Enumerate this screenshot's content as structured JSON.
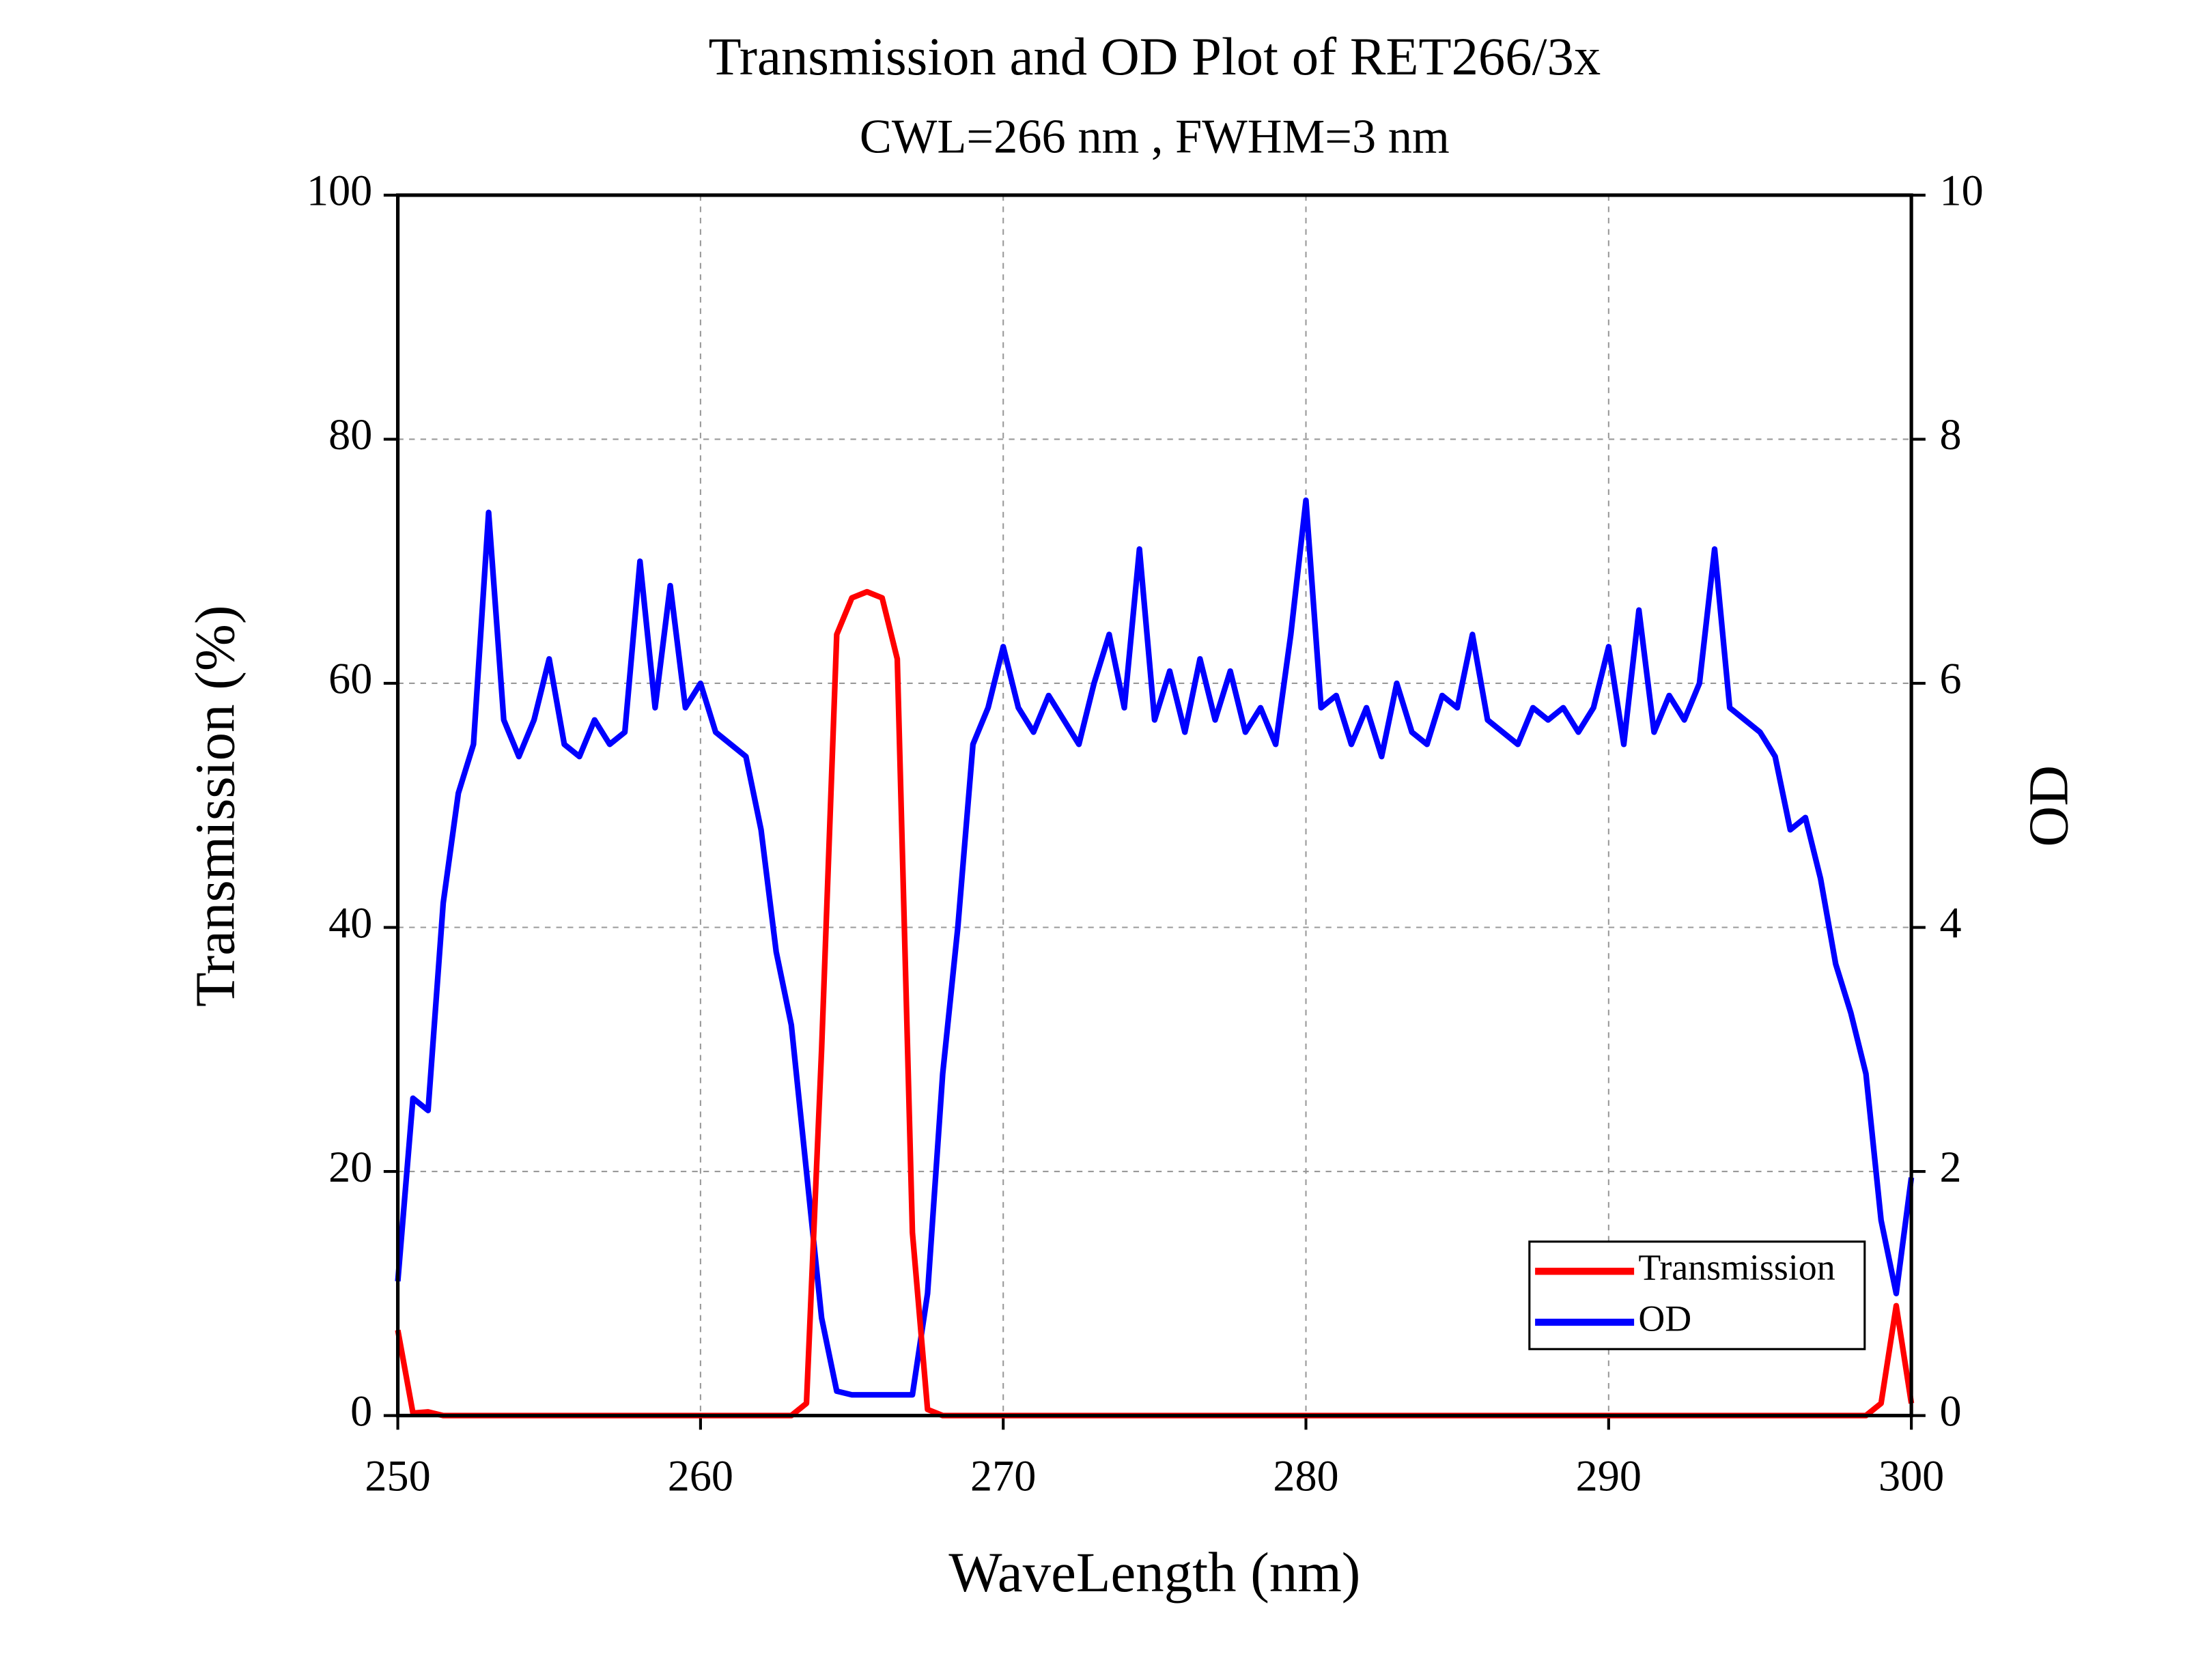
{
  "chart_data": {
    "type": "line",
    "title": "Transmission and OD Plot of RET266/3x",
    "subtitle": "CWL=266 nm , FWHM=3 nm",
    "x_label": "WaveLength (nm)",
    "y_label": "Transmission (%)",
    "y2_label": "OD",
    "x": [
      250,
      250.5,
      251,
      251.5,
      252,
      252.5,
      253,
      253.5,
      254,
      254.5,
      255,
      255.5,
      256,
      256.5,
      257,
      257.5,
      258,
      258.5,
      259,
      259.5,
      260,
      260.5,
      261,
      261.5,
      262,
      262.5,
      263,
      263.5,
      264,
      264.5,
      265,
      265.5,
      266,
      266.5,
      267,
      267.5,
      268,
      268.5,
      269,
      269.5,
      270,
      270.5,
      271,
      271.5,
      272,
      272.5,
      273,
      273.5,
      274,
      274.5,
      275,
      275.5,
      276,
      276.5,
      277,
      277.5,
      278,
      278.5,
      279,
      279.5,
      280,
      280.5,
      281,
      281.5,
      282,
      282.5,
      283,
      283.5,
      284,
      284.5,
      285,
      285.5,
      286,
      286.5,
      287,
      287.5,
      288,
      288.5,
      289,
      289.5,
      290,
      290.5,
      291,
      291.5,
      292,
      292.5,
      293,
      293.5,
      294,
      294.5,
      295,
      295.5,
      296,
      296.5,
      297,
      297.5,
      298,
      298.5,
      299,
      299.5,
      300
    ],
    "series": [
      {
        "name": "Transmission",
        "color": "#ff0000",
        "values": [
          7,
          0.2,
          0.3,
          0,
          0,
          0,
          0,
          0,
          0,
          0,
          0,
          0,
          0,
          0,
          0,
          0,
          0,
          0,
          0,
          0,
          0,
          0,
          0,
          0,
          0,
          0,
          0,
          1,
          30,
          64,
          67,
          67.5,
          67,
          62,
          15,
          0.5,
          0,
          0,
          0,
          0,
          0,
          0,
          0,
          0,
          0,
          0,
          0,
          0,
          0,
          0,
          0,
          0,
          0,
          0,
          0,
          0,
          0,
          0,
          0,
          0,
          0,
          0,
          0,
          0,
          0,
          0,
          0,
          0,
          0,
          0,
          0,
          0,
          0,
          0,
          0,
          0,
          0,
          0,
          0,
          0,
          0,
          0,
          0,
          0,
          0,
          0,
          0,
          0,
          0,
          0,
          0,
          0,
          0,
          0,
          0,
          0,
          0,
          0,
          1,
          9,
          1
        ]
      },
      {
        "name": "OD",
        "color": "#0000ff",
        "axis": "y2",
        "values": [
          1.1,
          2.6,
          2.5,
          4.2,
          5.1,
          5.5,
          7.4,
          5.7,
          5.4,
          5.7,
          6.2,
          5.5,
          5.4,
          5.7,
          5.5,
          5.6,
          7.0,
          5.8,
          6.8,
          5.8,
          6.0,
          5.6,
          5.5,
          5.4,
          4.8,
          3.8,
          3.2,
          2.0,
          0.8,
          0.2,
          0.17,
          0.17,
          0.17,
          0.17,
          0.17,
          1.0,
          2.8,
          4.0,
          5.5,
          5.8,
          6.3,
          5.8,
          5.6,
          5.9,
          5.7,
          5.5,
          6.0,
          6.4,
          5.8,
          7.1,
          5.7,
          6.1,
          5.6,
          6.2,
          5.7,
          6.1,
          5.6,
          5.8,
          5.5,
          6.4,
          7.5,
          5.8,
          5.9,
          5.5,
          5.8,
          5.4,
          6.0,
          5.6,
          5.5,
          5.9,
          5.8,
          6.4,
          5.7,
          5.6,
          5.5,
          5.8,
          5.7,
          5.8,
          5.6,
          5.8,
          6.3,
          5.5,
          6.6,
          5.6,
          5.9,
          5.7,
          6.0,
          7.1,
          5.8,
          5.7,
          5.6,
          5.4,
          4.8,
          4.9,
          4.4,
          3.7,
          3.3,
          2.8,
          1.6,
          1.0,
          1.95
        ]
      }
    ],
    "xlim": [
      250,
      300
    ],
    "xticks": [
      250,
      260,
      270,
      280,
      290,
      300
    ],
    "ylim": [
      0,
      100
    ],
    "yticks": [
      0,
      20,
      40,
      60,
      80,
      100
    ],
    "y2lim": [
      0,
      10
    ],
    "y2ticks": [
      0,
      2,
      4,
      6,
      8,
      10
    ],
    "grid": true,
    "legend": "lower right"
  }
}
